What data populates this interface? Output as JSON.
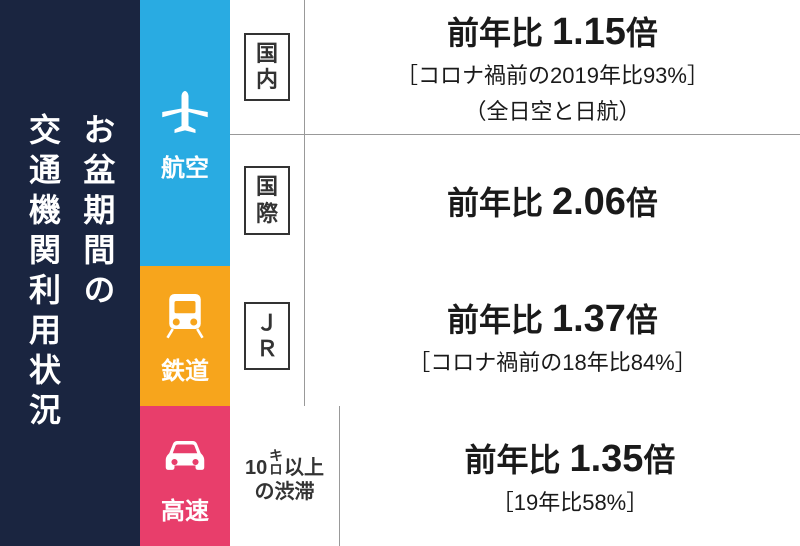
{
  "title": "お盆期間の\n交通機関利用状況",
  "modes": {
    "air": {
      "label": "航空",
      "color": "#29abe2",
      "domestic": {
        "label": "国\n内",
        "main": "前年比 1.15倍",
        "sub1": "［コロナ禍前の2019年比93%］",
        "sub2": "（全日空と日航）"
      },
      "international": {
        "label": "国\n際",
        "main": "前年比 2.06倍"
      }
    },
    "rail": {
      "label": "鉄道",
      "color": "#f7a51c",
      "jr": {
        "label": "Ｊ\nＲ",
        "main": "前年比 1.37倍",
        "sub1": "［コロナ禍前の18年比84%］"
      }
    },
    "highway": {
      "label": "高速",
      "color": "#e83e6b",
      "jam": {
        "label_line1": "10㌔以上",
        "label_line2": "の渋滞",
        "main": "前年比 1.35倍",
        "sub1": "［19年比58%］"
      }
    }
  }
}
